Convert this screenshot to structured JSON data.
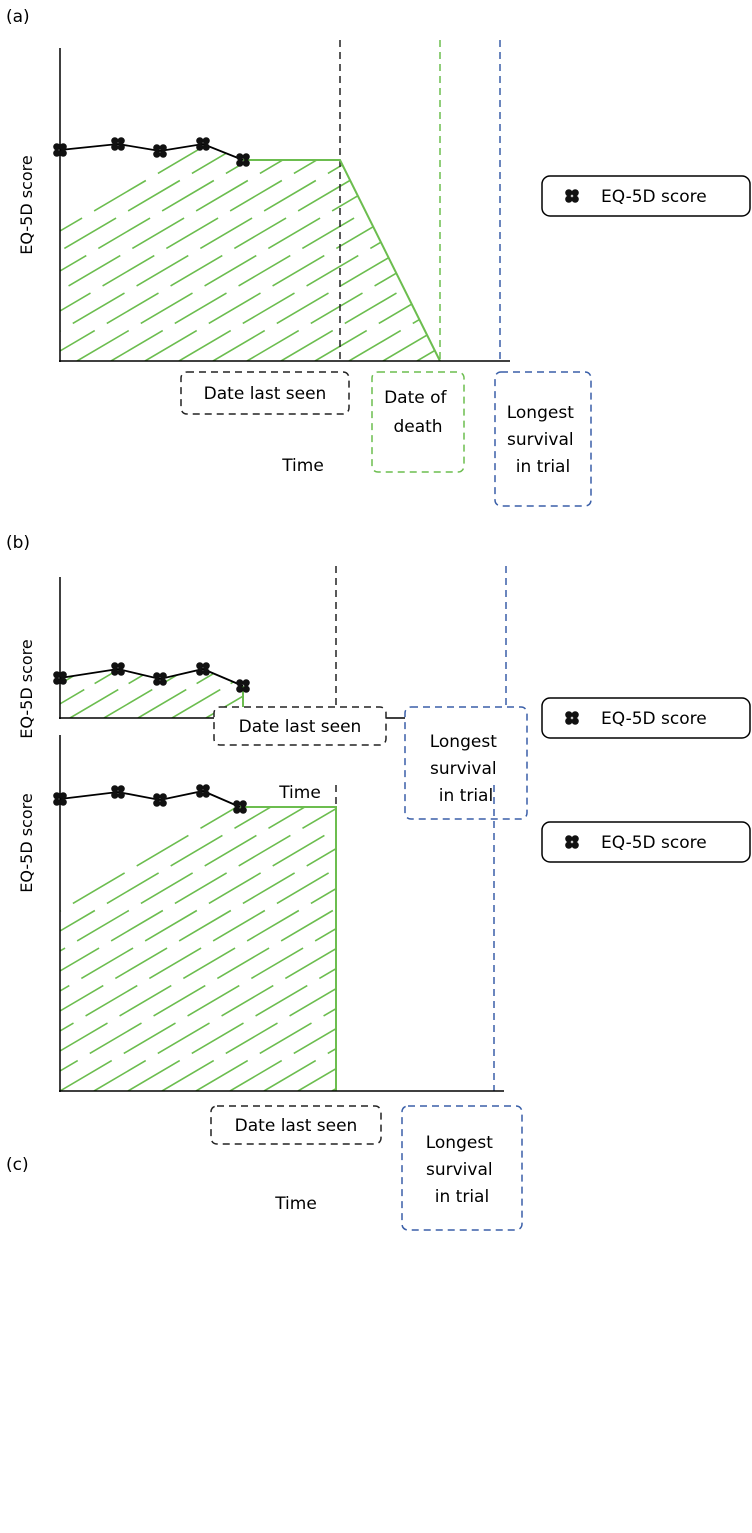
{
  "colors": {
    "green": "#6cbd4f",
    "black_dash": "#222222",
    "blue_dash": "#3a5fa8",
    "marker": "#111111"
  },
  "legend_label": "EQ-5D score",
  "y_axis_label": "EQ-5D score",
  "x_axis_label": "Time",
  "panels": [
    {
      "id": "a",
      "letter": "(a)",
      "box_date_last_seen": "Date last seen",
      "box_date_of_death": [
        "Date of",
        "death"
      ],
      "box_longest_survival": [
        "Longest",
        "survival",
        "in trial"
      ]
    },
    {
      "id": "b",
      "letter": "(b)",
      "box_date_last_seen": "Date last seen",
      "box_longest_survival": [
        "Longest",
        "survival",
        "in trial"
      ]
    },
    {
      "id": "c",
      "letter": "(c)",
      "box_date_last_seen": "Date last seen",
      "box_longest_survival": [
        "Longest",
        "survival",
        "in trial"
      ]
    }
  ]
}
